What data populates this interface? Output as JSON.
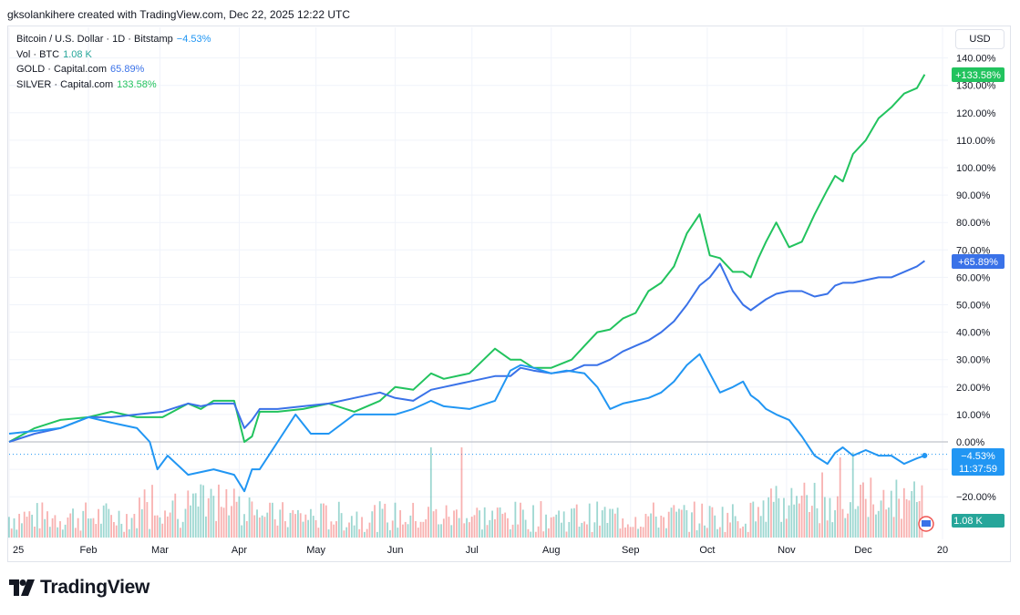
{
  "header": {
    "credit": "gksolankihere created with TradingView.com, Dec 22, 2025 12:22 UTC"
  },
  "legend": [
    {
      "label": "Bitcoin / U.S. Dollar · 1D · Bitstamp",
      "value": "−4.53%",
      "color": "#2196f3"
    },
    {
      "label": "Vol · BTC",
      "value": "1.08 K",
      "color": "#26a69a"
    },
    {
      "label": "GOLD · Capital.com",
      "value": "65.89%",
      "color": "#3a72e8"
    },
    {
      "label": "SILVER · Capital.com",
      "value": "133.58%",
      "color": "#22c35e"
    }
  ],
  "currency": "USD",
  "badges": {
    "silver": "+133.58%",
    "gold": "+65.89%",
    "btc": "−4.53%",
    "countdown": "11:37:59",
    "volume": "1.08 K"
  },
  "brand": {
    "name": "TradingView"
  },
  "colors": {
    "silver": "#22c35e",
    "gold": "#3a72e8",
    "btc": "#2196f3",
    "vol_up": "#26a69a",
    "vol_down": "#ef5350"
  },
  "chart_data": {
    "type": "line",
    "yunit": "%",
    "ylim": [
      -28,
      142
    ],
    "y_ticks": [
      "140.00%",
      "130.00%",
      "120.00%",
      "110.00%",
      "100.00%",
      "90.00%",
      "80.00%",
      "70.00%",
      "60.00%",
      "50.00%",
      "40.00%",
      "30.00%",
      "20.00%",
      "10.00%",
      "0.00%",
      "−20.00%"
    ],
    "y_tick_values": [
      140,
      130,
      120,
      110,
      100,
      90,
      80,
      70,
      60,
      50,
      40,
      30,
      20,
      10,
      0,
      -20
    ],
    "x_labels": [
      "25",
      "Feb",
      "Mar",
      "Apr",
      "May",
      "Jun",
      "Jul",
      "Aug",
      "Sep",
      "Oct",
      "Nov",
      "Dec",
      "20"
    ],
    "x_label_days": [
      0,
      31,
      59,
      90,
      120,
      151,
      181,
      212,
      243,
      273,
      304,
      334,
      365
    ],
    "grid": true,
    "series": [
      {
        "name": "SILVER · Capital.com",
        "key": "silver",
        "x": [
          0,
          10,
          20,
          31,
          40,
          50,
          60,
          70,
          75,
          80,
          88,
          92,
          95,
          98,
          105,
          115,
          125,
          135,
          145,
          151,
          158,
          165,
          170,
          180,
          190,
          196,
          200,
          205,
          212,
          220,
          225,
          230,
          235,
          240,
          245,
          250,
          255,
          260,
          265,
          270,
          274,
          278,
          283,
          287,
          290,
          293,
          296,
          300,
          305,
          310,
          315,
          320,
          323,
          326,
          330,
          335,
          340,
          345,
          350,
          355,
          358
        ],
        "y": [
          0,
          5,
          8,
          9,
          11,
          9,
          9,
          14,
          12,
          15,
          15,
          0,
          2,
          11,
          11,
          12,
          14,
          11,
          15,
          20,
          19,
          25,
          23,
          25,
          34,
          30,
          30,
          27,
          27,
          30,
          35,
          40,
          41,
          45,
          47,
          55,
          58,
          64,
          76,
          83,
          68,
          67,
          62,
          62,
          60,
          67,
          73,
          80,
          71,
          73,
          83,
          92,
          97,
          95,
          105,
          110,
          118,
          122,
          127,
          129,
          134
        ]
      },
      {
        "name": "GOLD · Capital.com",
        "key": "gold",
        "x": [
          0,
          10,
          20,
          31,
          40,
          50,
          60,
          70,
          75,
          80,
          88,
          92,
          95,
          98,
          105,
          115,
          125,
          135,
          145,
          151,
          158,
          165,
          170,
          180,
          190,
          196,
          200,
          205,
          212,
          220,
          225,
          230,
          235,
          240,
          245,
          250,
          255,
          260,
          265,
          270,
          274,
          278,
          283,
          287,
          290,
          293,
          296,
          300,
          305,
          310,
          315,
          320,
          323,
          326,
          330,
          335,
          340,
          345,
          350,
          355,
          358
        ],
        "y": [
          0,
          3,
          5,
          9,
          9,
          10,
          11,
          14,
          13,
          14,
          14,
          5,
          8,
          12,
          12,
          13,
          14,
          16,
          18,
          16,
          15,
          19,
          20,
          22,
          24,
          24,
          27,
          26,
          25,
          26,
          28,
          28,
          30,
          33,
          35,
          37,
          40,
          44,
          50,
          57,
          60,
          65,
          55,
          50,
          48,
          50,
          52,
          54,
          55,
          55,
          53,
          54,
          57,
          58,
          58,
          59,
          60,
          60,
          62,
          64,
          66
        ]
      },
      {
        "name": "Bitcoin / U.S. Dollar · 1D · Bitstamp",
        "key": "btc",
        "x": [
          0,
          10,
          20,
          31,
          40,
          50,
          55,
          58,
          62,
          70,
          80,
          88,
          92,
          95,
          98,
          105,
          112,
          118,
          125,
          135,
          145,
          151,
          158,
          165,
          170,
          180,
          190,
          196,
          200,
          205,
          212,
          218,
          225,
          230,
          235,
          240,
          245,
          250,
          255,
          260,
          265,
          270,
          274,
          278,
          283,
          287,
          290,
          293,
          296,
          300,
          305,
          310,
          315,
          320,
          323,
          326,
          330,
          335,
          340,
          345,
          350,
          355,
          358
        ],
        "y": [
          3,
          4,
          5,
          9,
          7,
          5,
          0,
          -10,
          -5,
          -12,
          -10,
          -12,
          -18,
          -10,
          -10,
          0,
          10,
          3,
          3,
          10,
          10,
          10,
          12,
          15,
          13,
          12,
          15,
          26,
          28,
          27,
          25,
          26,
          25,
          20,
          12,
          14,
          15,
          16,
          18,
          22,
          28,
          32,
          25,
          18,
          20,
          22,
          17,
          15,
          12,
          10,
          8,
          2,
          -5,
          -8,
          -4,
          -2,
          -5,
          -3,
          -5,
          -5,
          -8,
          -6,
          -5
        ]
      }
    ],
    "volume": {
      "ylim": [
        0,
        1
      ],
      "bars": "generated",
      "last_value": "1.08 K"
    }
  }
}
